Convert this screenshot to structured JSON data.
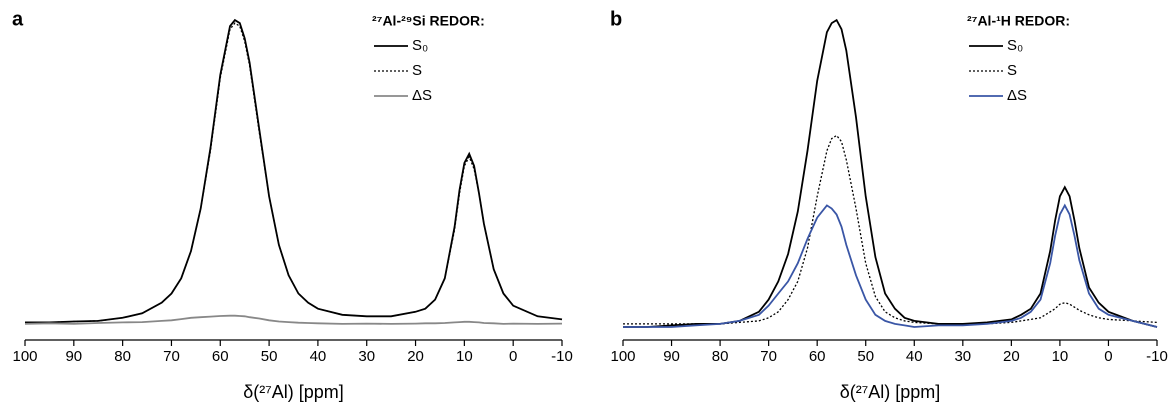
{
  "chart_data": [
    {
      "type": "line",
      "panel_label": "a",
      "legend_title": "²⁷Al-²⁹Si REDOR:",
      "xlabel": "δ(²⁷Al) [ppm]",
      "legend_position": "upper right",
      "xlim": [
        100,
        -10
      ],
      "xticks": [
        100,
        90,
        80,
        70,
        60,
        50,
        40,
        30,
        20,
        10,
        0,
        -10
      ],
      "ylim": [
        -2,
        102
      ],
      "x": [
        100,
        95,
        90,
        85,
        80,
        76,
        72,
        70,
        68,
        66,
        64,
        62,
        60,
        58,
        57,
        56,
        55,
        54,
        52,
        50,
        48,
        46,
        44,
        42,
        40,
        35,
        30,
        25,
        20,
        18,
        16,
        14,
        12,
        11,
        10,
        9,
        8,
        7,
        6,
        4,
        2,
        0,
        -5,
        -10
      ],
      "series": [
        {
          "name": "S₀",
          "color": "#000000",
          "dash": "solid",
          "values": [
            0.5,
            0.5,
            0.8,
            1,
            2,
            3.5,
            7,
            10,
            15,
            24,
            38,
            58,
            82,
            98,
            100,
            99,
            94,
            86,
            64,
            42,
            26,
            16,
            10,
            7,
            5,
            3,
            2.5,
            2.5,
            4,
            5,
            8,
            15,
            32,
            44,
            53,
            56,
            52,
            43,
            33,
            18,
            10,
            6,
            2.5,
            1.5
          ]
        },
        {
          "name": "S",
          "color": "#000000",
          "dash": "dotted",
          "values": [
            0.5,
            0.5,
            0.8,
            1,
            2,
            3.5,
            7,
            10,
            15,
            24,
            38,
            57,
            81,
            97,
            99,
            98,
            93,
            85,
            63,
            42,
            26,
            16,
            10,
            7,
            5,
            3,
            2.5,
            2.5,
            4,
            5,
            8,
            15,
            31,
            43,
            52,
            55,
            51,
            43,
            33,
            18,
            10,
            6,
            2.5,
            1.5
          ]
        },
        {
          "name": "ΔS",
          "color": "#888888",
          "dash": "solid",
          "values": [
            0,
            0.2,
            0,
            0.3,
            0.5,
            0.6,
            1,
            1.2,
            1.6,
            2,
            2.2,
            2.4,
            2.6,
            2.7,
            2.7,
            2.6,
            2.5,
            2.2,
            1.8,
            1.2,
            0.8,
            0.6,
            0.4,
            0.3,
            0.2,
            0,
            0.1,
            0,
            0.1,
            0.2,
            0.2,
            0.3,
            0.5,
            0.6,
            0.7,
            0.7,
            0.6,
            0.5,
            0.3,
            0.2,
            0,
            0.1,
            0,
            0.1
          ]
        }
      ]
    },
    {
      "type": "line",
      "panel_label": "b",
      "legend_title": "²⁷Al-¹H REDOR:",
      "xlabel": "δ(²⁷Al) [ppm]",
      "legend_position": "upper right",
      "xlim": [
        100,
        -10
      ],
      "xticks": [
        100,
        90,
        80,
        70,
        60,
        50,
        40,
        30,
        20,
        10,
        0,
        -10
      ],
      "ylim": [
        -2,
        102
      ],
      "x": [
        100,
        95,
        90,
        85,
        80,
        76,
        72,
        70,
        68,
        66,
        64,
        62,
        60,
        58,
        57,
        56,
        55,
        54,
        52,
        50,
        48,
        46,
        44,
        42,
        40,
        35,
        30,
        25,
        20,
        18,
        16,
        14,
        12,
        11,
        10,
        9,
        8,
        7,
        6,
        4,
        2,
        0,
        -5,
        -10
      ],
      "series": [
        {
          "name": "S₀",
          "color": "#000000",
          "dash": "solid",
          "values": [
            -1,
            -1,
            -0.5,
            0,
            0,
            1,
            4,
            8,
            14,
            23,
            37,
            57,
            80,
            96,
            99,
            100,
            97,
            90,
            68,
            42,
            22,
            10,
            5,
            2,
            1,
            0,
            0,
            0.5,
            1.5,
            3,
            5,
            10,
            24,
            34,
            42,
            45,
            42,
            34,
            25,
            12,
            7,
            4,
            1,
            -1
          ]
        },
        {
          "name": "S",
          "color": "#000000",
          "dash": "dotted",
          "values": [
            0,
            0,
            0,
            0,
            0,
            0.5,
            1,
            2,
            4,
            8,
            14,
            25,
            42,
            57,
            61,
            62,
            60,
            54,
            38,
            20,
            9,
            4,
            2,
            1,
            0.5,
            0,
            0,
            0,
            0.5,
            1,
            1.5,
            2,
            4,
            5,
            6.5,
            7,
            6.5,
            5.5,
            4.5,
            3,
            2,
            1.5,
            1,
            0.5
          ]
        },
        {
          "name": "ΔS",
          "color": "#3a56a6",
          "dash": "solid",
          "values": [
            -1,
            -1,
            -1,
            -0.5,
            0,
            1,
            3,
            6,
            10,
            14,
            20,
            28,
            35,
            39,
            38,
            36,
            32,
            26,
            16,
            8,
            3,
            1,
            0,
            -0.5,
            -1,
            -0.5,
            -0.5,
            0,
            1,
            2,
            4,
            8,
            20,
            29,
            36,
            39,
            36,
            29,
            21,
            10,
            5,
            3,
            1,
            -1
          ]
        }
      ]
    }
  ]
}
